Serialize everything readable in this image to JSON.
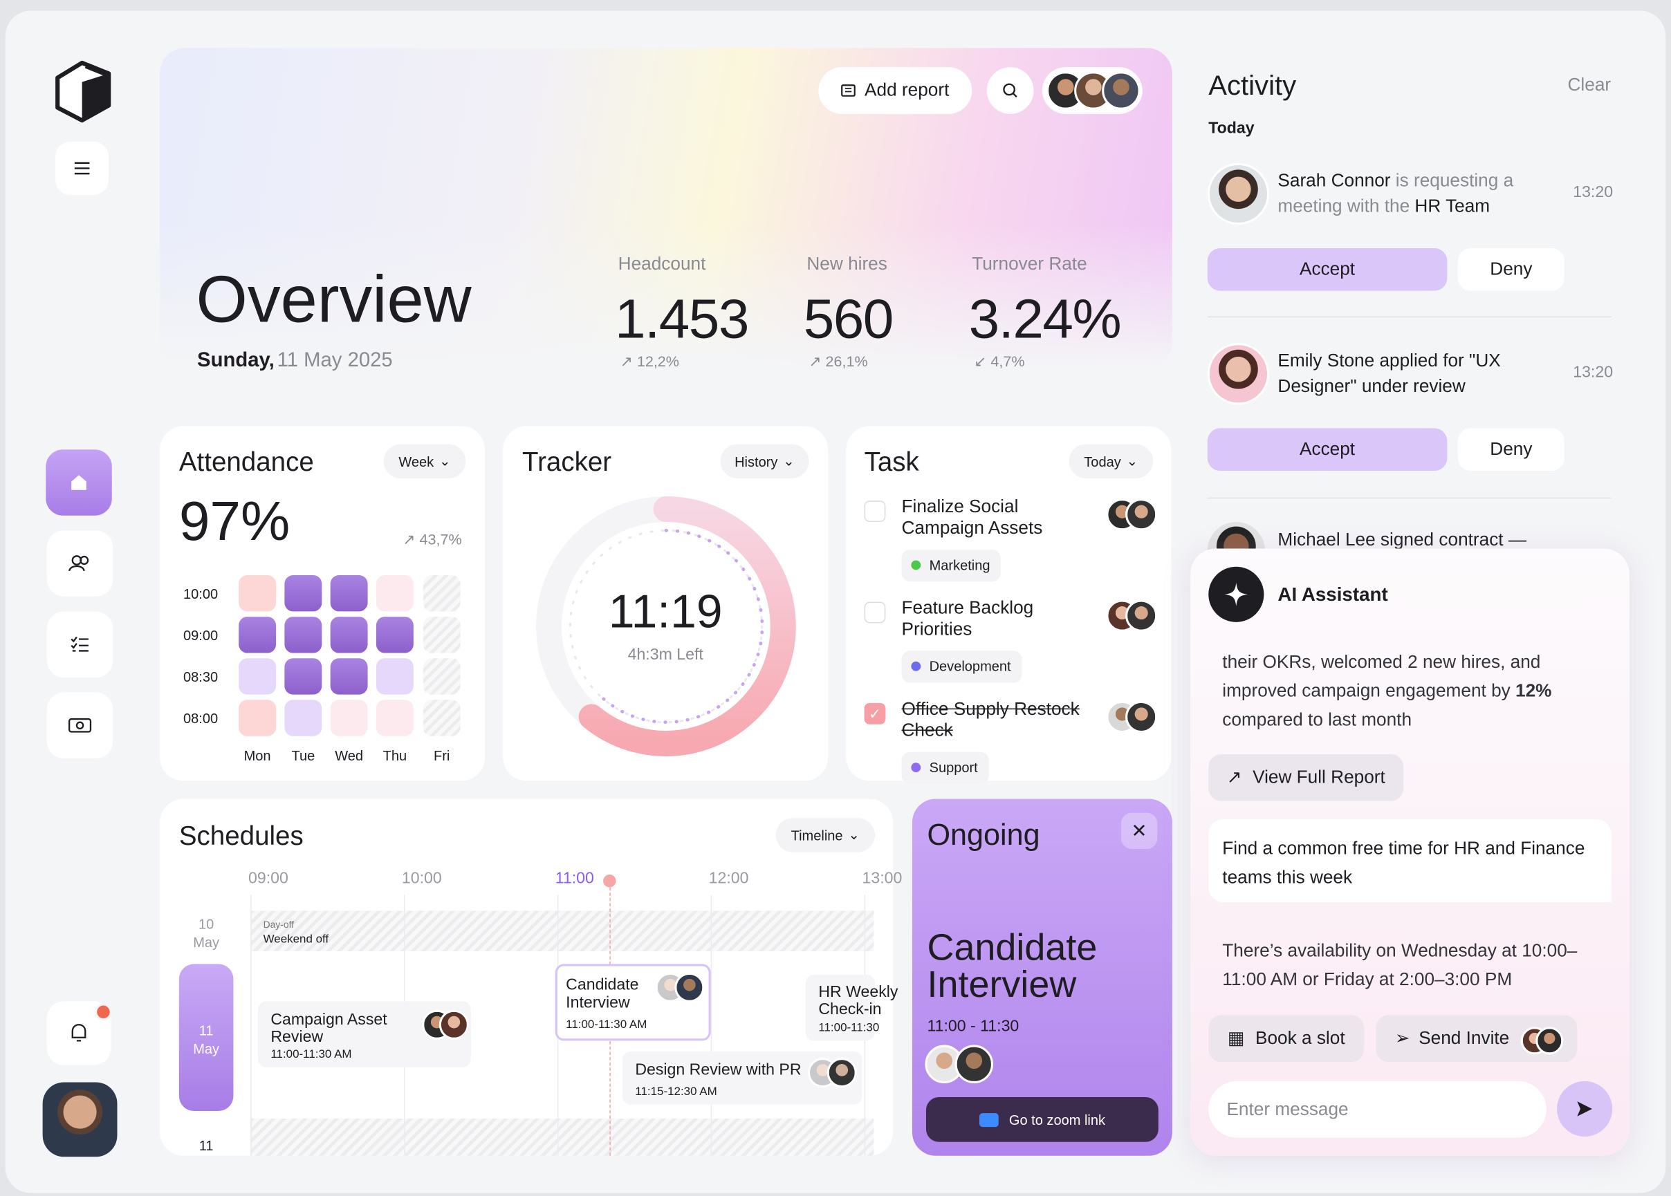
{
  "header": {
    "title": "Overview",
    "date_day": "Sunday,",
    "date_rest": "11 May 2025",
    "add_report": "Add report"
  },
  "stats": [
    {
      "label": "Headcount",
      "value": "1.453",
      "change": "12,2%"
    },
    {
      "label": "New hires",
      "value": "560",
      "change": "26,1%"
    },
    {
      "label": "Turnover Rate",
      "value": "3.24%",
      "change": "4,7%"
    }
  ],
  "attendance": {
    "title": "Attendance",
    "filter": "Week",
    "value": "97%",
    "change": "43,7%",
    "times": [
      "10:00",
      "09:00",
      "08:30",
      "08:00"
    ],
    "days": [
      "Mon",
      "Tue",
      "Wed",
      "Thu",
      "Fri"
    ]
  },
  "tracker": {
    "title": "Tracker",
    "filter": "History",
    "time": "11:19",
    "left": "4h:3m Left"
  },
  "task": {
    "title": "Task",
    "filter": "Today",
    "items": [
      {
        "label": "Finalize Social Campaign Assets",
        "tag": "Marketing",
        "done": false
      },
      {
        "label": "Feature Backlog Priorities",
        "tag": "Development",
        "done": false
      },
      {
        "label": "Office Supply Restock Check",
        "tag": "Support",
        "done": true
      }
    ]
  },
  "schedules": {
    "title": "Schedules",
    "filter": "Timeline",
    "hours": [
      "09:00",
      "10:00",
      "11:00",
      "12:00",
      "13:00"
    ],
    "rows": [
      {
        "day": "10",
        "month": "May"
      },
      {
        "day": "11",
        "month": "May"
      },
      {
        "day": "11"
      }
    ],
    "day_off": {
      "small": "Day-off",
      "label": "Weekend off"
    },
    "events": [
      {
        "title": "Campaign Asset Review",
        "time": "11:00-11:30 AM"
      },
      {
        "title": "Candidate Interview",
        "time": "11:00-11:30 AM"
      },
      {
        "title": "HR Weekly Check-in",
        "time": "11:00-11:30"
      },
      {
        "title": "Design Review with PR",
        "time": "11:15-12:30 AM"
      }
    ]
  },
  "ongoing": {
    "title": "Ongoing",
    "event": "Candidate Interview",
    "time": "11:00 - 11:30",
    "zoom": "Go to zoom link"
  },
  "activity": {
    "title": "Activity",
    "clear": "Clear",
    "section": "Today",
    "items": [
      {
        "name": "Sarah Connor",
        "text": " is requesting a meeting with the ",
        "bold": "HR Team",
        "time": "13:20",
        "accept": "Accept",
        "deny": "Deny"
      },
      {
        "text": "Emily Stone applied for \"UX Designer\" under review",
        "time": "13:20",
        "accept": "Accept",
        "deny": "Deny"
      },
      {
        "text": "Michael Lee signed contract —"
      }
    ]
  },
  "ai": {
    "title": "AI Assistant",
    "summary": "their OKRs, welcomed 2 new hires, and improved campaign engagement by ",
    "summary_bold": "12%",
    "summary_end": " compared to last month",
    "view_report": "View Full Report",
    "prompt": "Find a common free time for HR and Finance teams this week",
    "answer": "There’s availability on Wednesday at 10:00–11:00 AM or Friday at 2:00–3:00 PM",
    "book": "Book a slot",
    "send": "Send Invite",
    "placeholder": "Enter message"
  }
}
